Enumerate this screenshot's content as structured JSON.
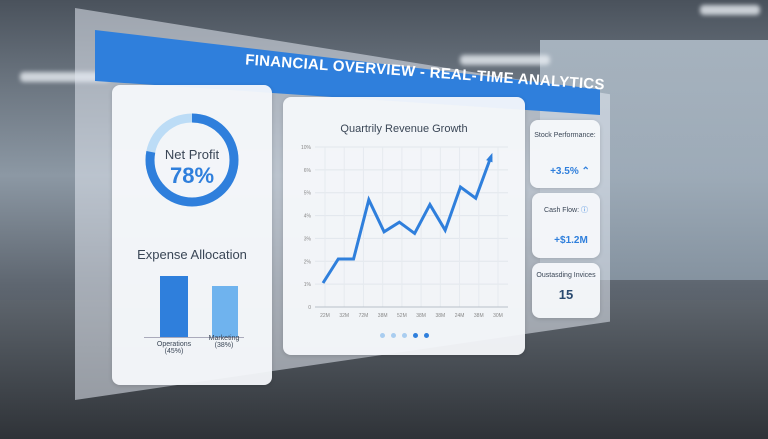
{
  "header": {
    "title": "FINANCIAL OVERVIEW - REAL-TIME ANALYTICS"
  },
  "net_profit": {
    "label": "Net Profit",
    "value": "78%",
    "percent": 78
  },
  "expenses": {
    "title": "Expense Allocation",
    "bars": [
      {
        "label": "Operations",
        "pct_label": "(45%)",
        "value": 45,
        "color": "#2f7fdc"
      },
      {
        "label": "Marketing",
        "pct_label": "(38%)",
        "value": 38,
        "color": "#6fb3ee"
      }
    ]
  },
  "chart_data": {
    "type": "line",
    "title": "Quartrily Revenue Growth",
    "yticks": [
      "0",
      "1%",
      "2%",
      "3%",
      "4%",
      "5%",
      "6%",
      "10%"
    ],
    "xticks": [
      "22M",
      "32M",
      "72M",
      "38M",
      "52M",
      "38M",
      "38M",
      "24M",
      "38M",
      "30M"
    ],
    "values": [
      1.5,
      3.0,
      3.0,
      6.7,
      4.7,
      5.3,
      4.6,
      6.4,
      4.8,
      7.5,
      6.8,
      9.4
    ],
    "ylim": [
      0,
      10
    ],
    "grid": true,
    "color": "#2f7fdc"
  },
  "pager": {
    "count": 5,
    "active": 4
  },
  "stock": {
    "label": "Stock Performance:",
    "value": "+3.5%",
    "icon": "chevron-up-icon"
  },
  "cash": {
    "label": "Cash Flow:",
    "value": "+$1.2M",
    "icon": "info-icon"
  },
  "invoices": {
    "label": "Oustasding Invices",
    "value": "15"
  }
}
